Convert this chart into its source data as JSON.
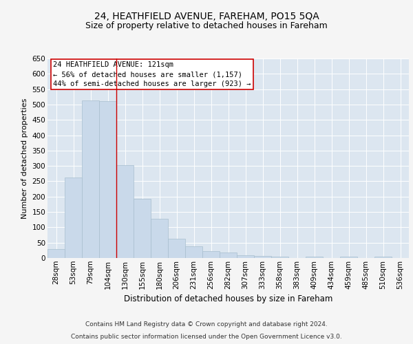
{
  "title1": "24, HEATHFIELD AVENUE, FAREHAM, PO15 5QA",
  "title2": "Size of property relative to detached houses in Fareham",
  "xlabel": "Distribution of detached houses by size in Fareham",
  "ylabel": "Number of detached properties",
  "categories": [
    "28sqm",
    "53sqm",
    "79sqm",
    "104sqm",
    "130sqm",
    "155sqm",
    "180sqm",
    "206sqm",
    "231sqm",
    "256sqm",
    "282sqm",
    "307sqm",
    "333sqm",
    "358sqm",
    "383sqm",
    "409sqm",
    "434sqm",
    "459sqm",
    "485sqm",
    "510sqm",
    "536sqm"
  ],
  "values": [
    30,
    263,
    513,
    510,
    303,
    193,
    128,
    62,
    37,
    22,
    17,
    10,
    7,
    4,
    0,
    4,
    0,
    5,
    0,
    4,
    0
  ],
  "bar_color": "#c9d9ea",
  "bar_edgecolor": "#a8bece",
  "vline_x_index": 3.5,
  "vline_color": "#cc0000",
  "annotation_lines": [
    "24 HEATHFIELD AVENUE: 121sqm",
    "← 56% of detached houses are smaller (1,157)",
    "44% of semi-detached houses are larger (923) →"
  ],
  "annotation_box_color": "#ffffff",
  "annotation_box_edgecolor": "#cc0000",
  "ylim": [
    0,
    650
  ],
  "yticks": [
    0,
    50,
    100,
    150,
    200,
    250,
    300,
    350,
    400,
    450,
    500,
    550,
    600,
    650
  ],
  "plot_bg_color": "#dce6f0",
  "fig_bg_color": "#f5f5f5",
  "footer1": "Contains HM Land Registry data © Crown copyright and database right 2024.",
  "footer2": "Contains public sector information licensed under the Open Government Licence v3.0.",
  "title1_fontsize": 10,
  "title2_fontsize": 9,
  "xlabel_fontsize": 8.5,
  "ylabel_fontsize": 8,
  "tick_fontsize": 7.5,
  "annotation_fontsize": 7.5,
  "footer_fontsize": 6.5
}
